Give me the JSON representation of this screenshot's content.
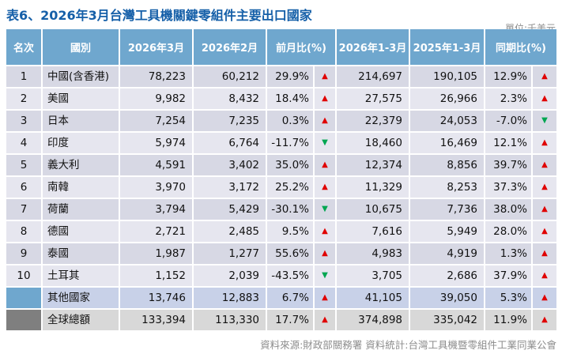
{
  "title": "表6、2026年3月台灣工具機關鍵零組件主要出口國家",
  "unit": "單位:千美元",
  "footer": "資料來源:財政部關務署  資料統計:台灣工具機暨零組件工業同業公會",
  "icons": {
    "up": "▲",
    "down": "▼"
  },
  "colors": {
    "title-blue": "#155fa8",
    "header-blue": "#6fa7ce",
    "row-odd": "#d7d8e4",
    "row-even": "#e6e6ef",
    "row-others": "#c8d1e8",
    "row-total": "#d8d8d8",
    "total-rank-gray": "#7f7f7f",
    "up-red": "#e00000",
    "down-green": "#00a651",
    "note-gray": "#8c8c8c"
  },
  "chart_data": {
    "type": "table",
    "title": "表6、2026年3月台灣工具機關鍵零組件主要出口國家",
    "unit": "單位:千美元",
    "columns": [
      "名次",
      "國別",
      "2026年3月",
      "2026年2月",
      "前月比(%)",
      "2026年1-3月",
      "2025年1-3月",
      "同期比(%)"
    ],
    "rows": [
      {
        "rank": "1",
        "country": "中國(含香港)",
        "m1": "78,223",
        "m2": "60,212",
        "mom": "29.9%",
        "mom_dir": "up",
        "q1": "214,697",
        "q2": "190,105",
        "yoy": "12.9%",
        "yoy_dir": "up",
        "type": "normal"
      },
      {
        "rank": "2",
        "country": "美國",
        "m1": "9,982",
        "m2": "8,432",
        "mom": "18.4%",
        "mom_dir": "up",
        "q1": "27,575",
        "q2": "26,966",
        "yoy": "2.3%",
        "yoy_dir": "up",
        "type": "normal"
      },
      {
        "rank": "3",
        "country": "日本",
        "m1": "7,254",
        "m2": "7,235",
        "mom": "0.3%",
        "mom_dir": "up",
        "q1": "22,379",
        "q2": "24,053",
        "yoy": "-7.0%",
        "yoy_dir": "down",
        "type": "normal"
      },
      {
        "rank": "4",
        "country": "印度",
        "m1": "5,974",
        "m2": "6,764",
        "mom": "-11.7%",
        "mom_dir": "down",
        "q1": "18,460",
        "q2": "16,469",
        "yoy": "12.1%",
        "yoy_dir": "up",
        "type": "normal"
      },
      {
        "rank": "5",
        "country": "義大利",
        "m1": "4,591",
        "m2": "3,402",
        "mom": "35.0%",
        "mom_dir": "up",
        "q1": "12,374",
        "q2": "8,856",
        "yoy": "39.7%",
        "yoy_dir": "up",
        "type": "normal"
      },
      {
        "rank": "6",
        "country": "南韓",
        "m1": "3,970",
        "m2": "3,172",
        "mom": "25.2%",
        "mom_dir": "up",
        "q1": "11,329",
        "q2": "8,253",
        "yoy": "37.3%",
        "yoy_dir": "up",
        "type": "normal"
      },
      {
        "rank": "7",
        "country": "荷蘭",
        "m1": "3,794",
        "m2": "5,429",
        "mom": "-30.1%",
        "mom_dir": "down",
        "q1": "10,675",
        "q2": "7,736",
        "yoy": "38.0%",
        "yoy_dir": "up",
        "type": "normal"
      },
      {
        "rank": "8",
        "country": "德國",
        "m1": "2,721",
        "m2": "2,485",
        "mom": "9.5%",
        "mom_dir": "up",
        "q1": "7,616",
        "q2": "5,949",
        "yoy": "28.0%",
        "yoy_dir": "up",
        "type": "normal"
      },
      {
        "rank": "9",
        "country": "泰國",
        "m1": "1,987",
        "m2": "1,277",
        "mom": "55.6%",
        "mom_dir": "up",
        "q1": "4,983",
        "q2": "4,919",
        "yoy": "1.3%",
        "yoy_dir": "up",
        "type": "normal"
      },
      {
        "rank": "10",
        "country": "土耳其",
        "m1": "1,152",
        "m2": "2,039",
        "mom": "-43.5%",
        "mom_dir": "down",
        "q1": "3,705",
        "q2": "2,686",
        "yoy": "37.9%",
        "yoy_dir": "up",
        "type": "normal"
      },
      {
        "rank": "",
        "country": "其他國家",
        "m1": "13,746",
        "m2": "12,883",
        "mom": "6.7%",
        "mom_dir": "up",
        "q1": "41,105",
        "q2": "39,050",
        "yoy": "5.3%",
        "yoy_dir": "up",
        "type": "others"
      },
      {
        "rank": "",
        "country": "全球總額",
        "m1": "133,394",
        "m2": "113,330",
        "mom": "17.7%",
        "mom_dir": "up",
        "q1": "374,898",
        "q2": "335,042",
        "yoy": "11.9%",
        "yoy_dir": "up",
        "type": "total"
      }
    ]
  }
}
